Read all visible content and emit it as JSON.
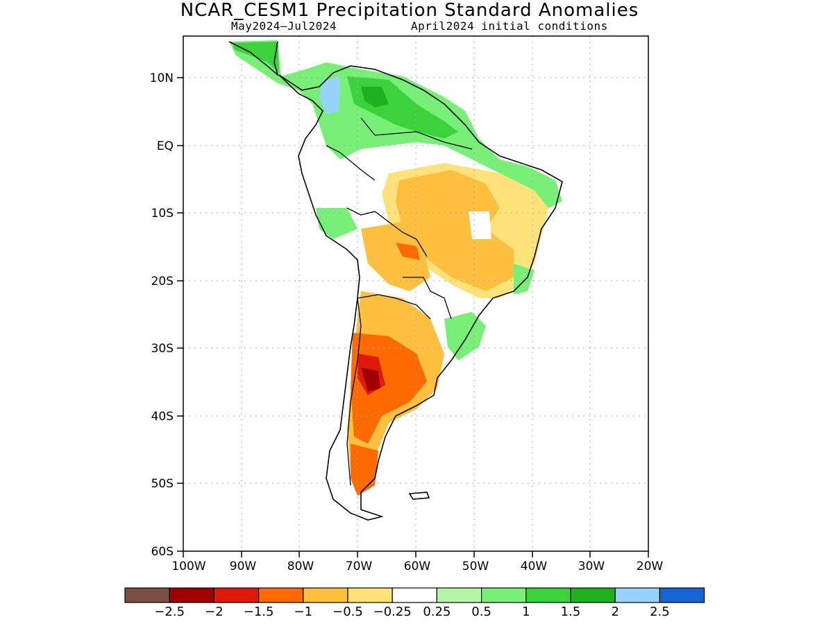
{
  "title": "NCAR_CESM1 Precipitation Standard Anomalies",
  "subtitle_left": "May2024—Jul2024",
  "subtitle_right": "April2024 initial conditions",
  "lat_labels": [
    "10N",
    "EQ",
    "10S",
    "20S",
    "30S",
    "40S",
    "50S",
    "60S"
  ],
  "lon_labels": [
    "100W",
    "90W",
    "80W",
    "70W",
    "60W",
    "50W",
    "40W",
    "30W",
    "20W"
  ],
  "colorbar": {
    "colors": [
      "#7a5044",
      "#a00000",
      "#e01a0a",
      "#ff6a00",
      "#ffc040",
      "#ffe27a",
      "#ffffff",
      "#b4f5a8",
      "#78f078",
      "#3cd23c",
      "#20b020",
      "#96d2fa",
      "#1464d2"
    ],
    "labels": [
      "−2.5",
      "−2",
      "−1.5",
      "−1",
      "−0.5",
      "−0.25",
      "0.25",
      "0.5",
      "1",
      "1.5",
      "2",
      "2.5"
    ]
  }
}
